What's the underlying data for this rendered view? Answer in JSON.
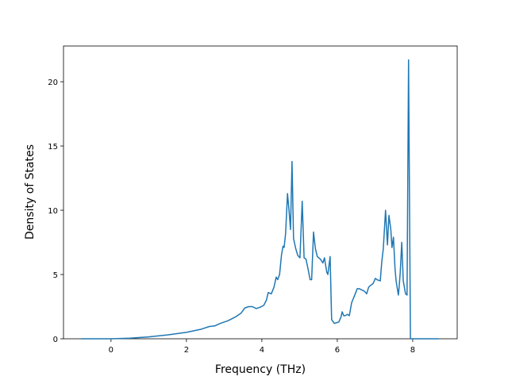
{
  "chart_data": {
    "type": "line",
    "xlabel": "Frequency (THz)",
    "ylabel": "Density of States",
    "xlim": [
      -1.26,
      9.18
    ],
    "ylim": [
      0,
      22.78
    ],
    "xticks": [
      0,
      2,
      4,
      6,
      8
    ],
    "yticks": [
      0,
      5,
      10,
      15,
      20
    ],
    "grid": false,
    "series": [
      {
        "color": "#1f77b4",
        "x": [
          -0.8,
          0,
          0.5,
          1,
          1.5,
          2,
          2.4,
          2.6,
          2.75,
          2.9,
          3.1,
          3.3,
          3.45,
          3.55,
          3.65,
          3.75,
          3.85,
          3.95,
          4.05,
          4.12,
          4.17,
          4.25,
          4.32,
          4.38,
          4.42,
          4.47,
          4.52,
          4.56,
          4.59,
          4.63,
          4.68,
          4.72,
          4.76,
          4.8,
          4.84,
          4.9,
          4.95,
          5.01,
          5.07,
          5.12,
          5.17,
          5.22,
          5.28,
          5.32,
          5.37,
          5.42,
          5.47,
          5.55,
          5.62,
          5.66,
          5.72,
          5.75,
          5.81,
          5.85,
          5.92,
          5.98,
          6.04,
          6.1,
          6.13,
          6.17,
          6.21,
          6.27,
          6.32,
          6.38,
          6.45,
          6.53,
          6.58,
          6.65,
          6.72,
          6.78,
          6.83,
          6.86,
          6.95,
          7.01,
          7.05,
          7.14,
          7.18,
          7.22,
          7.28,
          7.33,
          7.37,
          7.42,
          7.45,
          7.49,
          7.53,
          7.56,
          7.62,
          7.64,
          7.67,
          7.71,
          7.75,
          7.81,
          7.85,
          7.89,
          7.94,
          8.3,
          8.69
        ],
        "values": [
          0,
          0,
          0.05,
          0.15,
          0.3,
          0.5,
          0.75,
          0.95,
          1.0,
          1.2,
          1.4,
          1.7,
          2.0,
          2.4,
          2.5,
          2.5,
          2.35,
          2.45,
          2.6,
          3.0,
          3.6,
          3.5,
          4.0,
          4.8,
          4.6,
          5.0,
          6.5,
          7.2,
          7.1,
          8.2,
          11.3,
          10.0,
          8.5,
          13.8,
          7.8,
          7.0,
          6.5,
          6.3,
          10.7,
          6.3,
          6.2,
          5.5,
          4.6,
          4.6,
          8.3,
          7.0,
          6.4,
          6.2,
          5.9,
          6.3,
          5.2,
          5.0,
          6.4,
          1.5,
          1.2,
          1.25,
          1.3,
          1.7,
          2.1,
          1.8,
          1.8,
          1.9,
          1.8,
          2.8,
          3.3,
          3.9,
          3.9,
          3.8,
          3.7,
          3.5,
          4.0,
          4.1,
          4.3,
          4.7,
          4.6,
          4.5,
          6.0,
          7.0,
          10.0,
          7.3,
          9.6,
          8.5,
          7.1,
          7.9,
          5.5,
          4.5,
          3.4,
          4.0,
          5.2,
          7.5,
          4.5,
          3.5,
          3.4,
          21.7,
          0,
          0,
          0
        ]
      }
    ]
  }
}
